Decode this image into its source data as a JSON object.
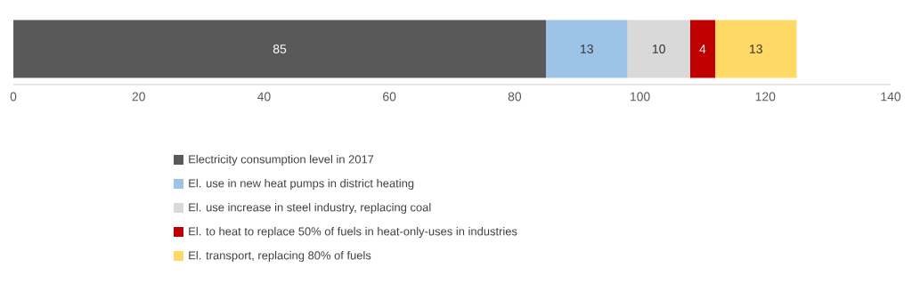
{
  "chart_data": {
    "type": "bar",
    "orientation": "horizontal",
    "stacked": true,
    "categories": [
      null
    ],
    "series": [
      {
        "name": "Electricity consumption level in 2017",
        "color": "#595959",
        "values": [
          85
        ]
      },
      {
        "name": "El. use in new heat pumps in district heating",
        "color": "#9dc3e6",
        "values": [
          13
        ]
      },
      {
        "name": "El. use increase in steel industry, replacing coal",
        "color": "#d9d9d9",
        "values": [
          10
        ]
      },
      {
        "name": "El. to heat to replace 50% of fuels in heat-only-uses in industries",
        "color": "#c00000",
        "values": [
          4
        ]
      },
      {
        "name": "El. transport, replacing 80% of fuels",
        "color": "#ffd966",
        "values": [
          13
        ]
      }
    ],
    "xlim": [
      0,
      140
    ],
    "xticks": [
      0,
      20,
      40,
      60,
      80,
      100,
      120,
      140
    ],
    "data_labels": true,
    "legend": "bottom",
    "grid": false
  }
}
